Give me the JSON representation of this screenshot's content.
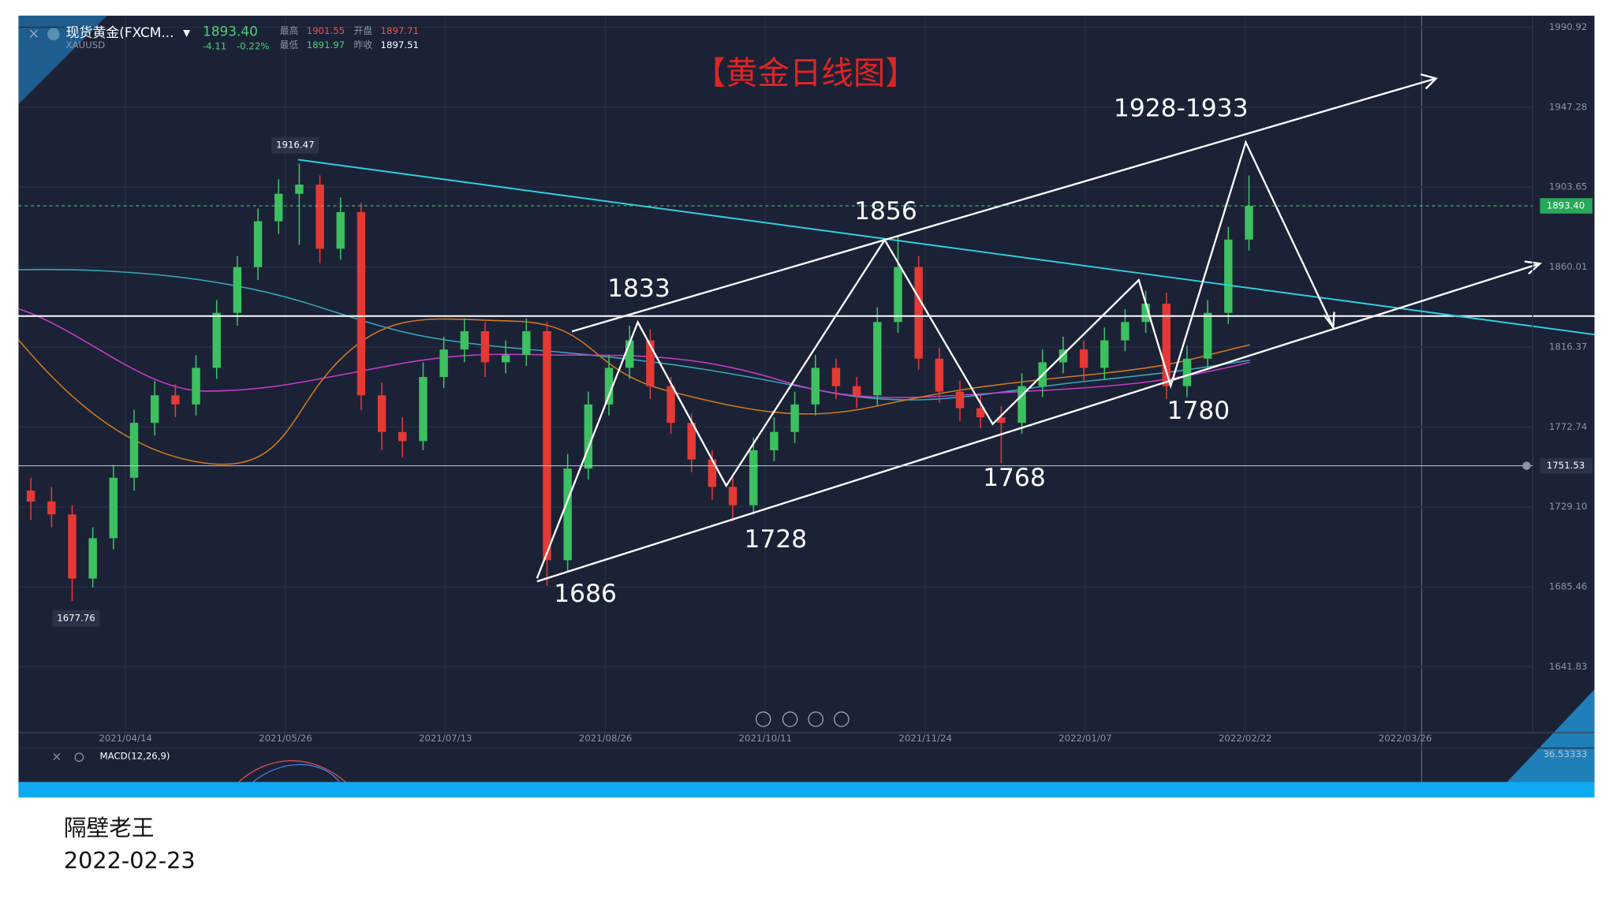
{
  "header": {
    "symbol": "现货黄金(FXCM...",
    "code": "XAUUSD",
    "price": "1893.40",
    "change": "-4.11",
    "change_pct": "-0.22%",
    "high_label": "最高",
    "high": "1901.55",
    "open_label": "开盘",
    "open": "1897.71",
    "low_label": "最低",
    "low": "1891.97",
    "prev_label": "昨收",
    "prev": "1897.51"
  },
  "title": "【黄金日线图】",
  "chart": {
    "type": "candlestick",
    "ylim": [
      1605.9,
      1997.2
    ],
    "yticks": [
      1990.92,
      1947.28,
      1903.65,
      1860.01,
      1816.37,
      1772.74,
      {
        "value": 1729.1,
        "label": "1729.10"
      },
      1685.46,
      1641.83
    ],
    "xticks": [
      "2021/04/14",
      "2021/05/26",
      "2021/07/13",
      "2021/08/26",
      "2021/10/11",
      "2021/11/24",
      "2022/01/07",
      "2022/02/22",
      "2022/03/26"
    ],
    "last_price": 1893.4,
    "last_price_label": "1893.40",
    "level": 1751.53,
    "level_label": "1751.53",
    "candles": [
      [
        1738,
        1745,
        1722,
        1732
      ],
      [
        1732,
        1740,
        1718,
        1725
      ],
      [
        1725,
        1730,
        1677.76,
        1690
      ],
      [
        1690,
        1718,
        1685,
        1712
      ],
      [
        1712,
        1752,
        1706,
        1745
      ],
      [
        1745,
        1782,
        1738,
        1775
      ],
      [
        1775,
        1798,
        1768,
        1790
      ],
      [
        1790,
        1796,
        1778,
        1785
      ],
      [
        1785,
        1812,
        1779,
        1805
      ],
      [
        1805,
        1842,
        1799,
        1835
      ],
      [
        1835,
        1866,
        1828,
        1860
      ],
      [
        1860,
        1892,
        1853,
        1885
      ],
      [
        1885,
        1908,
        1878,
        1900
      ],
      [
        1900,
        1916.47,
        1872,
        1905
      ],
      [
        1905,
        1910,
        1862,
        1870
      ],
      [
        1870,
        1898,
        1864,
        1890
      ],
      [
        1890,
        1895,
        1782,
        1790
      ],
      [
        1790,
        1797,
        1760,
        1770
      ],
      [
        1770,
        1778,
        1756,
        1765
      ],
      [
        1765,
        1808,
        1760,
        1800
      ],
      [
        1800,
        1822,
        1794,
        1815
      ],
      [
        1815,
        1832,
        1808,
        1825
      ],
      [
        1825,
        1830,
        1800,
        1808
      ],
      [
        1808,
        1820,
        1802,
        1812
      ],
      [
        1812,
        1832,
        1806,
        1825
      ],
      [
        1825,
        1830,
        1686,
        1700
      ],
      [
        1700,
        1758,
        1694,
        1750
      ],
      [
        1750,
        1792,
        1744,
        1785
      ],
      [
        1785,
        1812,
        1779,
        1805
      ],
      [
        1805,
        1828,
        1799,
        1820
      ],
      [
        1820,
        1826,
        1788,
        1795
      ],
      [
        1795,
        1800,
        1769,
        1775
      ],
      [
        1775,
        1780,
        1748,
        1755
      ],
      [
        1755,
        1760,
        1733,
        1740
      ],
      [
        1740,
        1746,
        1721,
        1730
      ],
      [
        1730,
        1767,
        1725,
        1760
      ],
      [
        1760,
        1778,
        1754,
        1770
      ],
      [
        1770,
        1792,
        1764,
        1785
      ],
      [
        1785,
        1812,
        1779,
        1805
      ],
      [
        1805,
        1810,
        1788,
        1795
      ],
      [
        1795,
        1800,
        1783,
        1790
      ],
      [
        1790,
        1838,
        1784,
        1830
      ],
      [
        1830,
        1877,
        1824,
        1860
      ],
      [
        1860,
        1866,
        1804,
        1810
      ],
      [
        1810,
        1816,
        1786,
        1792
      ],
      [
        1792,
        1798,
        1776,
        1783
      ],
      [
        1783,
        1790,
        1772,
        1778
      ],
      [
        1778,
        1784,
        1753,
        1775
      ],
      [
        1775,
        1802,
        1769,
        1795
      ],
      [
        1795,
        1815,
        1789,
        1808
      ],
      [
        1808,
        1822,
        1802,
        1815
      ],
      [
        1815,
        1820,
        1798,
        1805
      ],
      [
        1805,
        1827,
        1799,
        1820
      ],
      [
        1820,
        1837,
        1814,
        1830
      ],
      [
        1830,
        1847,
        1824,
        1840
      ],
      [
        1840,
        1846,
        1788,
        1795
      ],
      [
        1795,
        1817,
        1789,
        1810
      ],
      [
        1810,
        1842,
        1804,
        1835
      ],
      [
        1835,
        1882,
        1829,
        1875
      ],
      [
        1875,
        1910,
        1869,
        1893.4
      ]
    ],
    "annotations": [
      "1928-1933",
      "1856",
      "1833",
      "1686",
      "1728",
      "1768",
      "1780"
    ],
    "peak_label": "1916.47",
    "trough_label": "1677.76",
    "macd_label": "MACD(12,26,9)",
    "macd_value": "36.53333"
  },
  "caption": {
    "author": "隔壁老王",
    "date": "2022-02-23"
  }
}
